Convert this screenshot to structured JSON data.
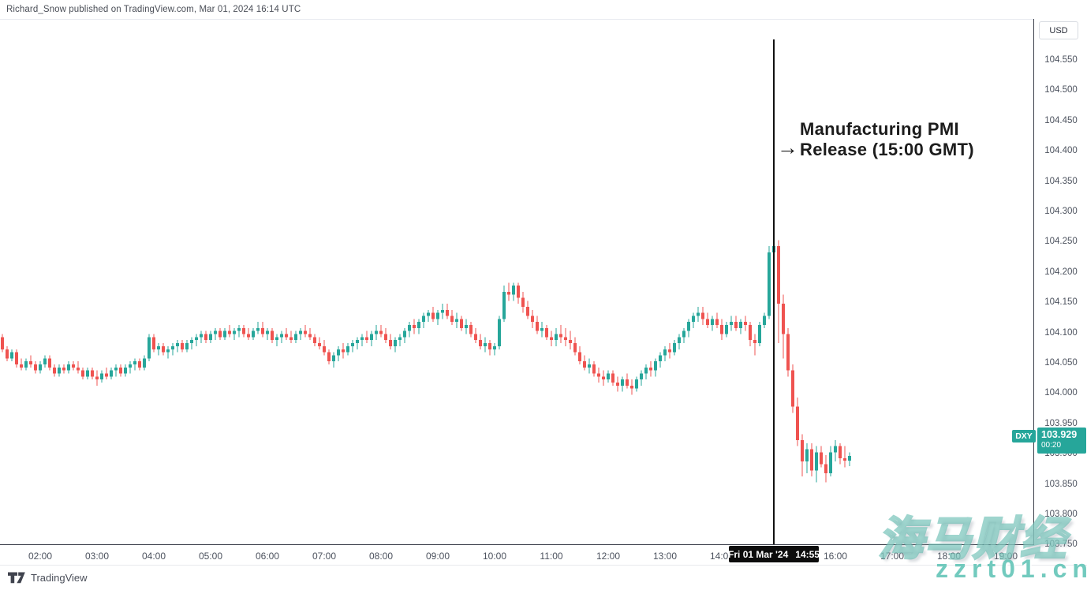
{
  "header": {
    "byline": "Richard_Snow published on TradingView.com, Mar 01, 2024 16:14 UTC"
  },
  "annotation": {
    "arrow": "→",
    "line1": "Manufacturing PMI",
    "line2": "Release (15:00 GMT)"
  },
  "price_axis": {
    "currency": "USD",
    "labels": [
      "104.550",
      "104.500",
      "104.450",
      "104.400",
      "104.350",
      "104.300",
      "104.250",
      "104.200",
      "104.150",
      "104.100",
      "104.050",
      "104.000",
      "103.950",
      "103.900",
      "103.850",
      "103.800",
      "103.750"
    ]
  },
  "time_axis": {
    "hour_labels": [
      "02:00",
      "03:00",
      "04:00",
      "05:00",
      "06:00",
      "07:00",
      "08:00",
      "09:00",
      "10:00",
      "11:00",
      "12:00",
      "13:00",
      "14:00",
      "16:00",
      "17:00",
      "18:00",
      "19:00"
    ],
    "crosshair": {
      "date": "Fri 01 Mar '24",
      "time": "14:55"
    }
  },
  "last_price_label": {
    "symbol": "DXY",
    "price": "103.929",
    "countdown": "00:20"
  },
  "footer": {
    "brand": "TradingView"
  },
  "watermark": {
    "title": "海马财经",
    "url": "zzrt01.cn"
  },
  "colors": {
    "up": "#26a69a",
    "down": "#ef5350",
    "event_line": "#111111",
    "axis_line": "#3c404b",
    "label_text": "#4c525e",
    "badge_bg": "#0c0c0c",
    "watermark": "#5fc3b5"
  },
  "chart_data": {
    "type": "candlestick",
    "symbol": "DXY",
    "currency": "USD",
    "interval": "5m",
    "date": "Mar 01, 2024",
    "ylim": [
      103.75,
      104.58
    ],
    "x_range": [
      "01:20",
      "16:15"
    ],
    "grid": false,
    "event": {
      "time": "14:55",
      "label": "Manufacturing PMI Release (15:00 GMT)"
    },
    "last_price": 103.929,
    "candles": [
      [
        "01:20",
        104.125,
        104.13,
        104.1,
        104.105
      ],
      [
        "01:25",
        104.105,
        104.11,
        104.085,
        104.09
      ],
      [
        "01:30",
        104.09,
        104.105,
        104.085,
        104.1
      ],
      [
        "01:35",
        104.1,
        104.105,
        104.075,
        104.08
      ],
      [
        "01:40",
        104.08,
        104.09,
        104.07,
        104.075
      ],
      [
        "01:45",
        104.075,
        104.09,
        104.07,
        104.085
      ],
      [
        "01:50",
        104.085,
        104.095,
        104.075,
        104.08
      ],
      [
        "01:55",
        104.08,
        104.085,
        104.065,
        104.07
      ],
      [
        "02:00",
        104.07,
        104.085,
        104.065,
        104.08
      ],
      [
        "02:05",
        104.08,
        104.095,
        104.075,
        104.09
      ],
      [
        "02:10",
        104.09,
        104.095,
        104.07,
        104.075
      ],
      [
        "02:15",
        104.075,
        104.08,
        104.06,
        104.065
      ],
      [
        "02:20",
        104.065,
        104.08,
        104.06,
        104.075
      ],
      [
        "02:25",
        104.075,
        104.08,
        104.065,
        104.07
      ],
      [
        "02:30",
        104.07,
        104.085,
        104.065,
        104.08
      ],
      [
        "02:35",
        104.08,
        104.085,
        104.07,
        104.075
      ],
      [
        "02:40",
        104.075,
        104.085,
        104.065,
        104.07
      ],
      [
        "02:45",
        104.07,
        104.075,
        104.055,
        104.06
      ],
      [
        "02:50",
        104.06,
        104.075,
        104.055,
        104.07
      ],
      [
        "02:55",
        104.07,
        104.075,
        104.055,
        104.06
      ],
      [
        "03:00",
        104.06,
        104.07,
        104.045,
        104.055
      ],
      [
        "03:05",
        104.055,
        104.07,
        104.05,
        104.065
      ],
      [
        "03:10",
        104.065,
        104.075,
        104.055,
        104.06
      ],
      [
        "03:15",
        104.06,
        104.075,
        104.055,
        104.07
      ],
      [
        "03:20",
        104.07,
        104.08,
        104.06,
        104.075
      ],
      [
        "03:25",
        104.075,
        104.08,
        104.06,
        104.065
      ],
      [
        "03:30",
        104.065,
        104.08,
        104.06,
        104.075
      ],
      [
        "03:35",
        104.075,
        104.085,
        104.065,
        104.08
      ],
      [
        "03:40",
        104.08,
        104.09,
        104.07,
        104.085
      ],
      [
        "03:45",
        104.085,
        104.09,
        104.07,
        104.075
      ],
      [
        "03:50",
        104.075,
        104.095,
        104.07,
        104.09
      ],
      [
        "03:55",
        104.09,
        104.13,
        104.085,
        104.125
      ],
      [
        "04:00",
        104.125,
        104.13,
        104.1,
        104.105
      ],
      [
        "04:05",
        104.105,
        104.115,
        104.095,
        104.11
      ],
      [
        "04:10",
        104.11,
        104.115,
        104.095,
        104.1
      ],
      [
        "04:15",
        104.1,
        104.11,
        104.09,
        104.105
      ],
      [
        "04:20",
        104.105,
        104.115,
        104.095,
        104.11
      ],
      [
        "04:25",
        104.11,
        104.12,
        104.1,
        104.115
      ],
      [
        "04:30",
        104.115,
        104.12,
        104.1,
        104.105
      ],
      [
        "04:35",
        104.105,
        104.12,
        104.1,
        104.115
      ],
      [
        "04:40",
        104.115,
        104.125,
        104.105,
        104.12
      ],
      [
        "04:45",
        104.12,
        104.13,
        104.11,
        104.125
      ],
      [
        "04:50",
        104.125,
        104.135,
        104.115,
        104.13
      ],
      [
        "04:55",
        104.13,
        104.135,
        104.115,
        104.12
      ],
      [
        "05:00",
        104.12,
        104.135,
        104.115,
        104.13
      ],
      [
        "05:05",
        104.13,
        104.14,
        104.12,
        104.135
      ],
      [
        "05:10",
        104.135,
        104.14,
        104.12,
        104.125
      ],
      [
        "05:15",
        104.125,
        104.14,
        104.12,
        104.135
      ],
      [
        "05:20",
        104.135,
        104.145,
        104.125,
        104.13
      ],
      [
        "05:25",
        104.13,
        104.14,
        104.12,
        104.135
      ],
      [
        "05:30",
        104.135,
        104.145,
        104.125,
        104.14
      ],
      [
        "05:35",
        104.14,
        104.145,
        104.125,
        104.13
      ],
      [
        "05:40",
        104.13,
        104.14,
        104.12,
        104.125
      ],
      [
        "05:45",
        104.125,
        104.14,
        104.12,
        104.135
      ],
      [
        "05:50",
        104.135,
        104.15,
        104.13,
        104.14
      ],
      [
        "05:55",
        104.14,
        104.15,
        104.125,
        104.13
      ],
      [
        "06:00",
        104.13,
        104.14,
        104.12,
        104.135
      ],
      [
        "06:05",
        104.135,
        104.14,
        104.115,
        104.12
      ],
      [
        "06:10",
        104.12,
        104.13,
        104.11,
        104.125
      ],
      [
        "06:15",
        104.125,
        104.135,
        104.115,
        104.13
      ],
      [
        "06:20",
        104.13,
        104.14,
        104.12,
        104.125
      ],
      [
        "06:25",
        104.125,
        104.135,
        104.115,
        104.12
      ],
      [
        "06:30",
        104.12,
        104.135,
        104.115,
        104.13
      ],
      [
        "06:35",
        104.13,
        104.14,
        104.12,
        104.135
      ],
      [
        "06:40",
        104.135,
        104.145,
        104.125,
        104.13
      ],
      [
        "06:45",
        104.13,
        104.14,
        104.12,
        104.125
      ],
      [
        "06:50",
        104.125,
        104.13,
        104.11,
        104.115
      ],
      [
        "06:55",
        104.115,
        104.125,
        104.105,
        104.11
      ],
      [
        "07:00",
        104.11,
        104.12,
        104.095,
        104.1
      ],
      [
        "07:05",
        104.1,
        104.105,
        104.08,
        104.085
      ],
      [
        "07:10",
        104.085,
        104.1,
        104.075,
        104.095
      ],
      [
        "07:15",
        104.095,
        104.11,
        104.085,
        104.105
      ],
      [
        "07:20",
        104.105,
        104.115,
        104.09,
        104.1
      ],
      [
        "07:25",
        104.1,
        104.115,
        104.095,
        104.11
      ],
      [
        "07:30",
        104.11,
        104.12,
        104.1,
        104.115
      ],
      [
        "07:35",
        104.115,
        104.125,
        104.105,
        104.12
      ],
      [
        "07:40",
        104.12,
        104.13,
        104.11,
        104.125
      ],
      [
        "07:45",
        104.125,
        104.135,
        104.115,
        104.12
      ],
      [
        "07:50",
        104.12,
        104.135,
        104.11,
        104.13
      ],
      [
        "07:55",
        104.13,
        104.145,
        104.12,
        104.135
      ],
      [
        "08:00",
        104.135,
        104.145,
        104.125,
        104.13
      ],
      [
        "08:05",
        104.13,
        104.14,
        104.115,
        104.12
      ],
      [
        "08:10",
        104.12,
        104.13,
        104.105,
        104.11
      ],
      [
        "08:15",
        104.11,
        104.125,
        104.1,
        104.12
      ],
      [
        "08:20",
        104.12,
        104.13,
        104.11,
        104.125
      ],
      [
        "08:25",
        104.125,
        104.14,
        104.115,
        104.135
      ],
      [
        "08:30",
        104.135,
        104.15,
        104.125,
        104.145
      ],
      [
        "08:35",
        104.145,
        104.155,
        104.13,
        104.14
      ],
      [
        "08:40",
        104.14,
        104.155,
        104.13,
        104.15
      ],
      [
        "08:45",
        104.15,
        104.165,
        104.14,
        104.16
      ],
      [
        "08:50",
        104.16,
        104.17,
        104.15,
        104.165
      ],
      [
        "08:55",
        104.165,
        104.175,
        104.15,
        104.155
      ],
      [
        "09:00",
        104.155,
        104.17,
        104.145,
        104.165
      ],
      [
        "09:05",
        104.165,
        104.18,
        104.155,
        104.17
      ],
      [
        "09:10",
        104.17,
        104.18,
        104.155,
        104.16
      ],
      [
        "09:15",
        104.16,
        104.17,
        104.145,
        104.15
      ],
      [
        "09:20",
        104.15,
        104.165,
        104.14,
        104.155
      ],
      [
        "09:25",
        104.155,
        104.16,
        104.135,
        104.14
      ],
      [
        "09:30",
        104.14,
        104.155,
        104.13,
        104.145
      ],
      [
        "09:35",
        104.145,
        104.15,
        104.125,
        104.13
      ],
      [
        "09:40",
        104.13,
        104.14,
        104.115,
        104.12
      ],
      [
        "09:45",
        104.12,
        104.13,
        104.105,
        104.11
      ],
      [
        "09:50",
        104.11,
        104.125,
        104.1,
        104.115
      ],
      [
        "09:55",
        104.115,
        104.12,
        104.095,
        104.105
      ],
      [
        "10:00",
        104.105,
        104.115,
        104.095,
        104.11
      ],
      [
        "10:05",
        104.11,
        104.16,
        104.105,
        104.155
      ],
      [
        "10:10",
        104.155,
        104.21,
        104.15,
        104.2
      ],
      [
        "10:15",
        104.2,
        104.215,
        104.185,
        104.195
      ],
      [
        "10:20",
        104.195,
        104.215,
        104.185,
        104.21
      ],
      [
        "10:25",
        104.21,
        104.215,
        104.18,
        104.19
      ],
      [
        "10:30",
        104.19,
        104.2,
        104.165,
        104.175
      ],
      [
        "10:35",
        104.175,
        104.185,
        104.155,
        104.16
      ],
      [
        "10:40",
        104.16,
        104.17,
        104.14,
        104.15
      ],
      [
        "10:45",
        104.15,
        104.16,
        104.13,
        104.135
      ],
      [
        "10:50",
        104.135,
        104.15,
        104.125,
        104.14
      ],
      [
        "10:55",
        104.14,
        104.145,
        104.12,
        104.125
      ],
      [
        "11:00",
        104.125,
        104.135,
        104.11,
        104.12
      ],
      [
        "11:05",
        104.12,
        104.14,
        104.11,
        104.13
      ],
      [
        "11:10",
        104.13,
        104.145,
        104.115,
        104.125
      ],
      [
        "11:15",
        104.125,
        104.14,
        104.11,
        104.12
      ],
      [
        "11:20",
        104.12,
        104.135,
        104.105,
        104.115
      ],
      [
        "11:25",
        104.115,
        104.125,
        104.095,
        104.1
      ],
      [
        "11:30",
        104.1,
        104.11,
        104.08,
        104.085
      ],
      [
        "11:35",
        104.085,
        104.095,
        104.07,
        104.075
      ],
      [
        "11:40",
        104.075,
        104.09,
        104.065,
        104.08
      ],
      [
        "11:45",
        104.08,
        104.085,
        104.06,
        104.065
      ],
      [
        "11:50",
        104.065,
        104.075,
        104.05,
        104.06
      ],
      [
        "11:55",
        104.06,
        104.07,
        104.045,
        104.055
      ],
      [
        "12:00",
        104.055,
        104.07,
        104.05,
        104.065
      ],
      [
        "12:05",
        104.065,
        104.07,
        104.045,
        104.05
      ],
      [
        "12:10",
        104.05,
        104.06,
        104.035,
        104.045
      ],
      [
        "12:15",
        104.045,
        104.06,
        104.035,
        104.055
      ],
      [
        "12:20",
        104.055,
        104.065,
        104.04,
        104.045
      ],
      [
        "12:25",
        104.045,
        104.055,
        104.03,
        104.04
      ],
      [
        "12:30",
        104.04,
        104.06,
        104.035,
        104.055
      ],
      [
        "12:35",
        104.055,
        104.07,
        104.045,
        104.065
      ],
      [
        "12:40",
        104.065,
        104.08,
        104.055,
        104.075
      ],
      [
        "12:45",
        104.075,
        104.085,
        104.06,
        104.07
      ],
      [
        "12:50",
        104.07,
        104.09,
        104.06,
        104.085
      ],
      [
        "12:55",
        104.085,
        104.1,
        104.075,
        104.095
      ],
      [
        "13:00",
        104.095,
        104.11,
        104.085,
        104.105
      ],
      [
        "13:05",
        104.105,
        104.115,
        104.09,
        104.1
      ],
      [
        "13:10",
        104.1,
        104.12,
        104.095,
        104.115
      ],
      [
        "13:15",
        104.115,
        104.13,
        104.105,
        104.125
      ],
      [
        "13:20",
        104.125,
        104.14,
        104.115,
        104.135
      ],
      [
        "13:25",
        104.135,
        104.155,
        104.125,
        104.15
      ],
      [
        "13:30",
        104.15,
        104.165,
        104.14,
        104.16
      ],
      [
        "13:35",
        104.16,
        104.175,
        104.15,
        104.165
      ],
      [
        "13:40",
        104.165,
        104.175,
        104.145,
        104.155
      ],
      [
        "13:45",
        104.155,
        104.165,
        104.14,
        104.145
      ],
      [
        "13:50",
        104.145,
        104.16,
        104.135,
        104.155
      ],
      [
        "13:55",
        104.155,
        104.165,
        104.14,
        104.145
      ],
      [
        "14:00",
        104.145,
        104.155,
        104.12,
        104.13
      ],
      [
        "14:05",
        104.13,
        104.15,
        104.125,
        104.145
      ],
      [
        "14:10",
        104.145,
        104.16,
        104.135,
        104.15
      ],
      [
        "14:15",
        104.15,
        104.16,
        104.135,
        104.14
      ],
      [
        "14:20",
        104.14,
        104.155,
        104.13,
        104.15
      ],
      [
        "14:25",
        104.15,
        104.16,
        104.135,
        104.145
      ],
      [
        "14:30",
        104.145,
        104.15,
        104.11,
        104.12
      ],
      [
        "14:35",
        104.12,
        104.13,
        104.095,
        104.115
      ],
      [
        "14:40",
        104.115,
        104.15,
        104.11,
        104.145
      ],
      [
        "14:45",
        104.145,
        104.165,
        104.14,
        104.16
      ],
      [
        "14:50",
        104.16,
        104.275,
        104.155,
        104.265
      ],
      [
        "14:55",
        104.265,
        104.29,
        104.255,
        104.275
      ],
      [
        "15:00",
        104.275,
        104.285,
        104.115,
        104.18
      ],
      [
        "15:05",
        104.18,
        104.195,
        104.09,
        104.13
      ],
      [
        "15:10",
        104.13,
        104.14,
        104.06,
        104.07
      ],
      [
        "15:15",
        104.07,
        104.08,
        104.0,
        104.01
      ],
      [
        "15:20",
        104.01,
        104.025,
        103.945,
        103.955
      ],
      [
        "15:25",
        103.955,
        103.965,
        103.895,
        103.92
      ],
      [
        "15:30",
        103.92,
        103.95,
        103.9,
        103.94
      ],
      [
        "15:35",
        103.94,
        103.95,
        103.895,
        103.905
      ],
      [
        "15:40",
        103.905,
        103.945,
        103.885,
        103.935
      ],
      [
        "15:45",
        103.935,
        103.945,
        103.91,
        103.915
      ],
      [
        "15:50",
        103.915,
        103.93,
        103.885,
        103.9
      ],
      [
        "15:55",
        103.9,
        103.945,
        103.895,
        103.935
      ],
      [
        "16:00",
        103.935,
        103.955,
        103.92,
        103.945
      ],
      [
        "16:05",
        103.945,
        103.95,
        103.915,
        103.925
      ],
      [
        "16:10",
        103.925,
        103.945,
        103.91,
        103.921
      ],
      [
        "16:15",
        103.921,
        103.935,
        103.912,
        103.929
      ]
    ]
  }
}
